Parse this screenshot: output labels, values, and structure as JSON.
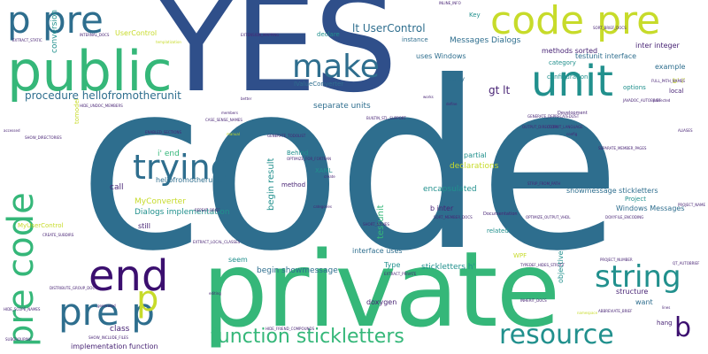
{
  "colors": {
    "navy": "#2f4f8a",
    "blue": "#2e6e8e",
    "teal": "#21908d",
    "green": "#35b779",
    "lime": "#c7db2a",
    "purple": "#482475",
    "darkpurple": "#3b0f6f",
    "bg": "#ffffff"
  },
  "words": [
    {
      "text": "code",
      "color": "blue"
    },
    {
      "text": "YES",
      "color": "navy"
    },
    {
      "text": "private",
      "color": "green"
    },
    {
      "text": "public",
      "color": "green"
    },
    {
      "text": "p pre",
      "color": "blue"
    },
    {
      "text": "code pre",
      "color": "lime"
    },
    {
      "text": "make",
      "color": "blue"
    },
    {
      "text": "unit",
      "color": "teal"
    },
    {
      "text": "trying",
      "color": "blue"
    },
    {
      "text": "end",
      "color": "darkpurple"
    },
    {
      "text": "string",
      "color": "teal"
    },
    {
      "text": "resource",
      "color": "teal"
    },
    {
      "text": "function stickletters",
      "color": "green"
    },
    {
      "text": "pre p",
      "color": "blue"
    },
    {
      "text": "pre code",
      "color": "green"
    },
    {
      "text": "p",
      "color": "lime"
    },
    {
      "text": "b",
      "color": "darkpurple"
    },
    {
      "text": "lt UserControl",
      "color": "blue"
    },
    {
      "text": "procedure hellofromotherunit",
      "color": "blue"
    },
    {
      "text": "gt lt",
      "color": "purple"
    },
    {
      "text": "Messages Dialogs",
      "color": "blue"
    },
    {
      "text": "methods sorted",
      "color": "purple"
    },
    {
      "text": "testunit interface",
      "color": "blue"
    },
    {
      "text": "inter integer",
      "color": "purple"
    },
    {
      "text": "uses Windows",
      "color": "blue"
    },
    {
      "text": "separate units",
      "color": "blue"
    },
    {
      "text": "declarations",
      "color": "lime"
    },
    {
      "text": "encapsulated",
      "color": "teal"
    },
    {
      "text": "MyConverter",
      "color": "lime"
    },
    {
      "text": "Dialogs implementation",
      "color": "teal"
    },
    {
      "text": "hellofromotherunit",
      "color": "blue"
    },
    {
      "text": "showmessage stickletters",
      "color": "blue"
    },
    {
      "text": "Windows Messages",
      "color": "blue"
    },
    {
      "text": "interface uses",
      "color": "blue"
    },
    {
      "text": "stickletters h'",
      "color": "teal"
    },
    {
      "text": "begin showmessage",
      "color": "blue"
    },
    {
      "text": "implementation function",
      "color": "purple"
    },
    {
      "text": "class",
      "color": "purple"
    },
    {
      "text": "call",
      "color": "purple"
    },
    {
      "text": "still",
      "color": "purple"
    },
    {
      "text": "seem",
      "color": "teal"
    },
    {
      "text": "Type",
      "color": "teal"
    },
    {
      "text": "structure",
      "color": "purple"
    },
    {
      "text": "want",
      "color": "blue"
    },
    {
      "text": "hang",
      "color": "purple"
    },
    {
      "text": "doxygen",
      "color": "purple"
    },
    {
      "text": "partial",
      "color": "teal"
    },
    {
      "text": "related",
      "color": "teal"
    },
    {
      "text": "copy",
      "color": "blue"
    },
    {
      "text": "example",
      "color": "blue"
    },
    {
      "text": "configuration",
      "color": "teal"
    },
    {
      "text": "category",
      "color": "teal"
    },
    {
      "text": "options",
      "color": "teal"
    },
    {
      "text": "local",
      "color": "purple"
    },
    {
      "text": "UserControl",
      "color": "lime"
    },
    {
      "text": "declare",
      "color": "teal"
    },
    {
      "text": "instance",
      "color": "blue"
    },
    {
      "text": "Key",
      "color": "teal"
    },
    {
      "text": "IValueConverter",
      "color": "blue"
    },
    {
      "text": "method",
      "color": "purple"
    },
    {
      "text": "begin result",
      "color": "teal"
    },
    {
      "text": "Behind",
      "color": "teal"
    },
    {
      "text": "XAML",
      "color": "teal"
    },
    {
      "text": "testunit",
      "color": "green"
    },
    {
      "text": "i' end",
      "color": "green"
    },
    {
      "text": "b inter",
      "color": "purple"
    },
    {
      "text": "Project",
      "color": "teal"
    },
    {
      "text": "WPF",
      "color": "lime"
    },
    {
      "text": "conversion",
      "color": "teal"
    },
    {
      "text": "MyUserControl",
      "color": "lime"
    },
    {
      "text": "b' i'",
      "color": "lime"
    },
    {
      "text": "Development",
      "color": "purple"
    },
    {
      "text": "Documentation",
      "color": "purple"
    },
    {
      "text": "SHOW_DIRECTORIES",
      "color": "purple"
    },
    {
      "text": "EXTRACT_STATIC",
      "color": "purple"
    },
    {
      "text": "INTERNAL_DOCS",
      "color": "purple"
    },
    {
      "text": "HIDE_UNDOC_MEMBERS",
      "color": "purple"
    },
    {
      "text": "OPTIMIZE_FOR_FORTRAN",
      "color": "purple"
    },
    {
      "text": "EXTRACT_LOCAL_CLASSES",
      "color": "purple"
    },
    {
      "text": "EXTRACT_PRIVATE",
      "color": "purple"
    },
    {
      "text": "GENERATE_TODOLIST",
      "color": "purple"
    },
    {
      "text": "SORT_MEMBER_DOCS",
      "color": "purple"
    },
    {
      "text": "OPTIMIZE_OUTPUT_VHDL",
      "color": "purple"
    },
    {
      "text": "GENERATE_DEPRECATEDLIST",
      "color": "purple"
    },
    {
      "text": "FULL_PATH_NAMES",
      "color": "purple"
    },
    {
      "text": "BUILTIN_STL_SUPPORT",
      "color": "purple"
    },
    {
      "text": "HIDE_SCOPE_NAMES",
      "color": "purple"
    },
    {
      "text": "DISTRIBUTE_GROUP_DOC",
      "color": "purple"
    },
    {
      "text": "ENABLED_SECTIONS",
      "color": "purple"
    },
    {
      "text": "SHOW_INCLUDE_FILES",
      "color": "purple"
    },
    {
      "text": "EXTENSION_MAPPING",
      "color": "purple"
    },
    {
      "text": "INLINE_INFO",
      "color": "purple"
    },
    {
      "text": "CASE_SENSE_NAMES",
      "color": "purple"
    },
    {
      "text": "SEPARATE_MEMBER_PAGES",
      "color": "purple"
    },
    {
      "text": "STRIP_FROM_PATH",
      "color": "purple"
    },
    {
      "text": "INHERIT_DOCS",
      "color": "purple"
    },
    {
      "text": "CREATE_SUBDIRS",
      "color": "purple"
    },
    {
      "text": "HIDE_FRIEND_COMPOUNDS",
      "color": "purple"
    },
    {
      "text": "PROJECT_NUMBER",
      "color": "purple"
    },
    {
      "text": "ABBREVIATE_BRIEF",
      "color": "purple"
    },
    {
      "text": "TYPEDEF_HIDES_STRUCT",
      "color": "purple"
    },
    {
      "text": "SORT_BRIEF_DOCS",
      "color": "purple"
    },
    {
      "text": "OUTPUT_LANGUAGE",
      "color": "purple"
    },
    {
      "text": "DOXYFILE_ENCODING",
      "color": "purple"
    },
    {
      "text": "ALIASES",
      "color": "purple"
    },
    {
      "text": "QT_AUTOBRIEF",
      "color": "purple"
    },
    {
      "text": "JAVADOC_AUTOBRIEF",
      "color": "purple"
    },
    {
      "text": "SHORT_NAMES",
      "color": "purple"
    },
    {
      "text": "REPEAT_BRIEF",
      "color": "purple"
    },
    {
      "text": "PROJECT_NAME",
      "color": "purple"
    },
    {
      "text": "OUTPUT_DIRECTORY",
      "color": "purple"
    },
    {
      "text": "SUBGROUPING",
      "color": "purple"
    },
    {
      "text": "protected",
      "color": "purple"
    },
    {
      "text": "accessed",
      "color": "purple"
    },
    {
      "text": "generated",
      "color": "purple"
    },
    {
      "text": "members",
      "color": "purple"
    },
    {
      "text": "better",
      "color": "purple"
    },
    {
      "text": "editing",
      "color": "purple"
    },
    {
      "text": "works",
      "color": "purple"
    },
    {
      "text": "lines",
      "color": "purple"
    },
    {
      "text": "config",
      "color": "purple"
    },
    {
      "text": "create",
      "color": "purple"
    },
    {
      "text": "define",
      "color": "purple"
    },
    {
      "text": "categories",
      "color": "purple"
    },
    {
      "text": "templatization",
      "color": "lime"
    },
    {
      "text": "manual",
      "color": "lime"
    },
    {
      "text": "document",
      "color": "lime"
    },
    {
      "text": "objective",
      "color": "teal"
    },
    {
      "text": "tomodel",
      "color": "lime"
    },
    {
      "text": "namespace",
      "color": "lime"
    }
  ]
}
